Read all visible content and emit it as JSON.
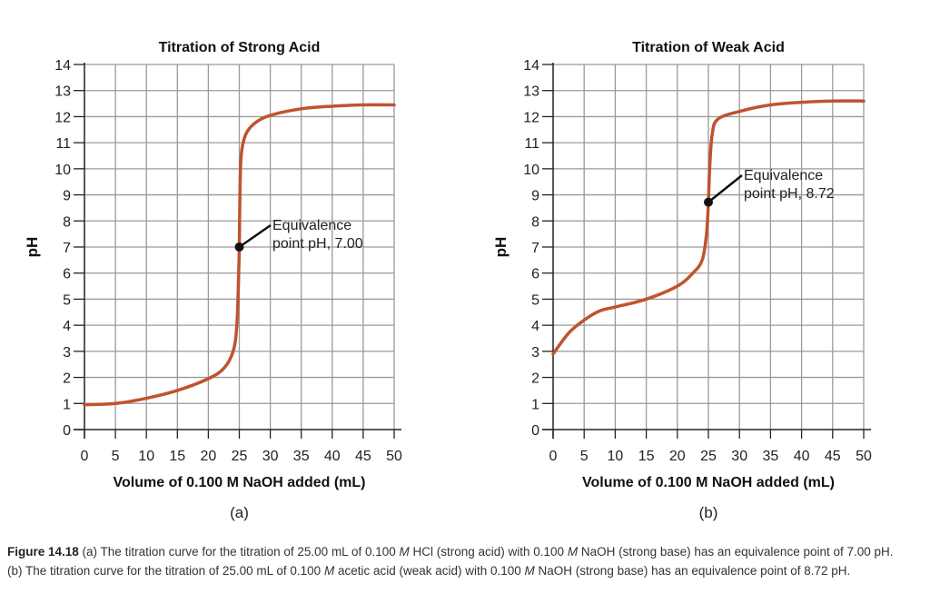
{
  "chart_data": [
    {
      "type": "line",
      "title": "Titration of Strong Acid",
      "xlabel": "Volume of 0.100 M NaOH added (mL)",
      "ylabel": "pH",
      "panel_label": "(a)",
      "xlim": [
        0,
        50
      ],
      "ylim": [
        0,
        14
      ],
      "xticks": [
        0,
        5,
        10,
        15,
        20,
        25,
        30,
        35,
        40,
        45,
        50
      ],
      "yticks": [
        0,
        1,
        2,
        3,
        4,
        5,
        6,
        7,
        8,
        9,
        10,
        11,
        12,
        13,
        14
      ],
      "grid": true,
      "color": "#c0532e",
      "x": [
        0,
        5,
        10,
        15,
        20,
        22.5,
        24,
        24.6,
        24.9,
        25,
        25.1,
        25.3,
        26,
        27.5,
        30,
        35,
        40,
        45,
        50
      ],
      "y": [
        0.95,
        1.0,
        1.2,
        1.5,
        1.95,
        2.35,
        3.0,
        4.0,
        6.0,
        7.0,
        9.0,
        10.5,
        11.3,
        11.75,
        12.05,
        12.3,
        12.4,
        12.45,
        12.45
      ],
      "annotation": {
        "x": 25,
        "y": 7.0,
        "line1": "Equivalence",
        "line2": "point pH, 7.00"
      }
    },
    {
      "type": "line",
      "title": "Titration of Weak Acid",
      "xlabel": "Volume of 0.100 M NaOH added (mL)",
      "ylabel": "pH",
      "panel_label": "(b)",
      "xlim": [
        0,
        50
      ],
      "ylim": [
        0,
        14
      ],
      "xticks": [
        0,
        5,
        10,
        15,
        20,
        25,
        30,
        35,
        40,
        45,
        50
      ],
      "yticks": [
        0,
        1,
        2,
        3,
        4,
        5,
        6,
        7,
        8,
        9,
        10,
        11,
        12,
        13,
        14
      ],
      "grid": true,
      "color": "#c0532e",
      "x": [
        0,
        2.5,
        5,
        7.5,
        10,
        15,
        20,
        22.5,
        24,
        24.7,
        25,
        25.2,
        25.6,
        26.5,
        30,
        35,
        40,
        45,
        50
      ],
      "y": [
        2.9,
        3.7,
        4.2,
        4.55,
        4.7,
        5.0,
        5.5,
        6.0,
        6.5,
        7.5,
        8.72,
        10.0,
        11.3,
        11.9,
        12.2,
        12.45,
        12.55,
        12.6,
        12.6
      ],
      "annotation": {
        "x": 25,
        "y": 8.72,
        "line1": "Equivalence",
        "line2": "point pH, 8.72"
      }
    }
  ],
  "caption": {
    "label": "Figure 14.18",
    "text_1": " (a) The titration curve for the titration of 25.00 mL of 0.100 ",
    "m1": "M",
    "text_2": " HCl (strong acid) with 0.100 ",
    "m2": "M",
    "text_3": " NaOH (strong base) has an equivalence point of 7.00 pH. (b) The titration curve for the titration of 25.00 mL of 0.100 ",
    "m3": "M",
    "text_4": " acetic acid (weak acid) with 0.100 ",
    "m4": "M",
    "text_5": " NaOH (strong base) has an equivalence point of 8.72 pH."
  }
}
